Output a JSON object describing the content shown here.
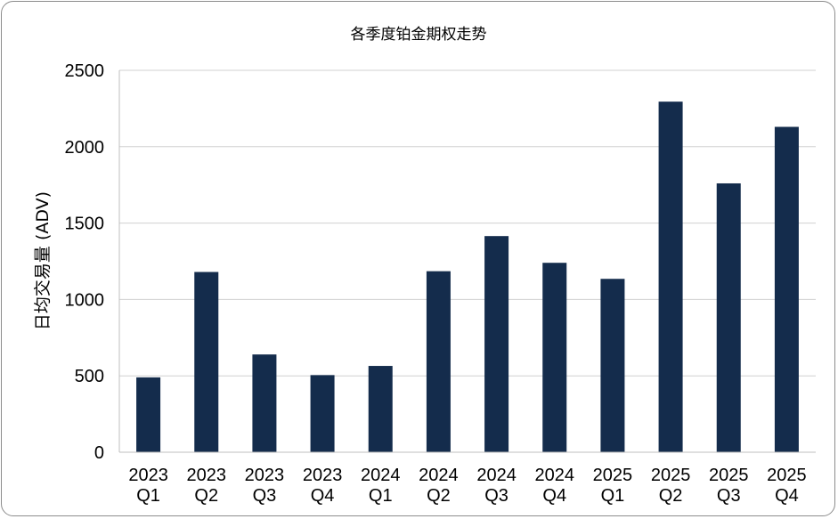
{
  "chart_data": {
    "type": "bar",
    "title": "各季度铂金期权走势",
    "xlabel": "",
    "ylabel": "日均交易量 (ADV)",
    "categories": [
      [
        "2023",
        "Q1"
      ],
      [
        "2023",
        "Q2"
      ],
      [
        "2023",
        "Q3"
      ],
      [
        "2023",
        "Q4"
      ],
      [
        "2024",
        "Q1"
      ],
      [
        "2024",
        "Q2"
      ],
      [
        "2024",
        "Q3"
      ],
      [
        "2024",
        "Q4"
      ],
      [
        "2025",
        "Q1"
      ],
      [
        "2025",
        "Q2"
      ],
      [
        "2025",
        "Q3"
      ],
      [
        "2025",
        "Q4"
      ]
    ],
    "values": [
      490,
      1180,
      640,
      505,
      565,
      1185,
      1415,
      1240,
      1135,
      2295,
      1760,
      2130
    ],
    "ylim": [
      0,
      2500
    ],
    "yticks": [
      0,
      500,
      1000,
      1500,
      2000,
      2500
    ],
    "grid": true,
    "legend": "none",
    "bar_color": "#142c4c"
  }
}
